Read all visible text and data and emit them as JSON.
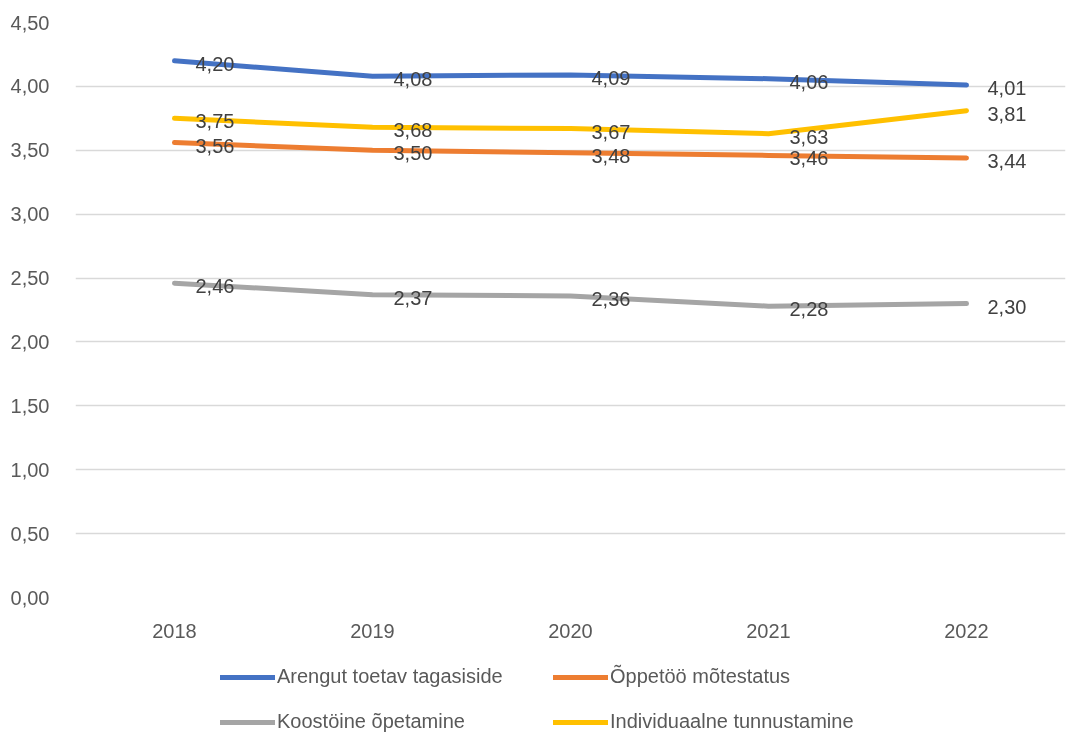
{
  "chart_data": {
    "type": "line",
    "categories": [
      "2018",
      "2019",
      "2020",
      "2021",
      "2022"
    ],
    "ylim": [
      0,
      4.5
    ],
    "yticks": [
      {
        "value": 0,
        "label": "0,00"
      },
      {
        "value": 0.5,
        "label": "0,50"
      },
      {
        "value": 1,
        "label": "1,00"
      },
      {
        "value": 1.5,
        "label": "1,50"
      },
      {
        "value": 2,
        "label": "2,00"
      },
      {
        "value": 2.5,
        "label": "2,50"
      },
      {
        "value": 3,
        "label": "3,00"
      },
      {
        "value": 3.5,
        "label": "3,50"
      },
      {
        "value": 4,
        "label": "4,00"
      },
      {
        "value": 4.5,
        "label": "4,50"
      }
    ],
    "grid": "y",
    "legend": "bottom",
    "series": [
      {
        "name": "Arengut toetav tagasiside",
        "color": "#4472c4",
        "values": [
          4.2,
          4.08,
          4.09,
          4.06,
          4.01
        ],
        "value_labels": [
          "4,20",
          "4,08",
          "4,09",
          "4,06",
          "4,01"
        ]
      },
      {
        "name": "Õppetöö mõtestatus",
        "color": "#ed7d31",
        "values": [
          3.56,
          3.5,
          3.48,
          3.46,
          3.44
        ],
        "value_labels": [
          "3,56",
          "3,50",
          "3,48",
          "3,46",
          "3,44"
        ]
      },
      {
        "name": "Koostöine õpetamine",
        "color": "#a5a5a5",
        "values": [
          2.46,
          2.37,
          2.36,
          2.28,
          2.3
        ],
        "value_labels": [
          "2,46",
          "2,37",
          "2,36",
          "2,28",
          "2,30"
        ]
      },
      {
        "name": "Individuaalne tunnustamine",
        "color": "#ffc000",
        "values": [
          3.75,
          3.68,
          3.67,
          3.63,
          3.81
        ],
        "value_labels": [
          "3,75",
          "3,68",
          "3,67",
          "3,63",
          "3,81"
        ]
      }
    ]
  }
}
